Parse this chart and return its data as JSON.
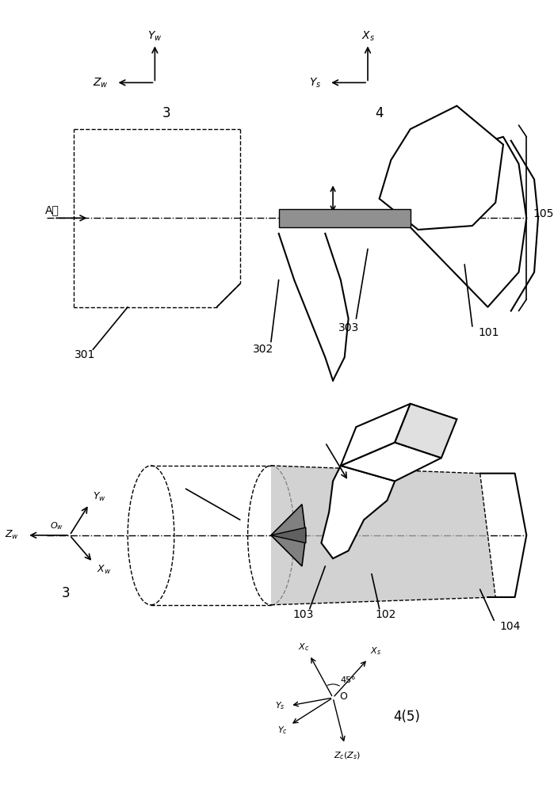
{
  "bg_color": "#ffffff",
  "line_color": "#000000",
  "gray_fill": "#b0b0b0",
  "light_gray": "#c8c8c8",
  "dashed_color": "#555555",
  "figsize": [
    6.99,
    10.0
  ],
  "dpi": 100
}
